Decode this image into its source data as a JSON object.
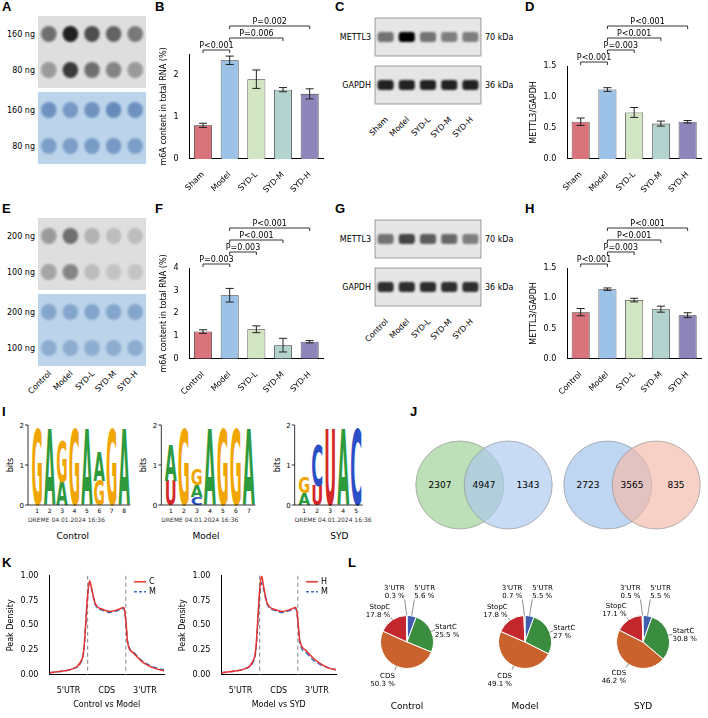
{
  "chart_data": [
    {
      "panel": "B",
      "type": "bar",
      "categories": [
        "Sham",
        "Model",
        "SYD-L",
        "SYD-M",
        "SYD-H"
      ],
      "values": [
        0.8,
        2.35,
        1.9,
        1.65,
        1.55
      ],
      "errors": [
        0.05,
        0.1,
        0.22,
        0.05,
        0.12
      ],
      "colors": [
        "#d9737c",
        "#9cc2e8",
        "#d2e6c4",
        "#b3d3cf",
        "#8e86bb"
      ],
      "ylabel": "m6A content in total RNA (%)",
      "ylim": [
        0,
        2.5
      ],
      "yticks": [
        0,
        1,
        2
      ],
      "grid": false,
      "comparisons": [
        {
          "from": "Model",
          "to": "SYD-H",
          "label": "P=0.002"
        },
        {
          "from": "Model",
          "to": "SYD-M",
          "label": "P=0.006"
        },
        {
          "from": "Sham",
          "to": "Model",
          "label": "P<0.001"
        }
      ]
    },
    {
      "panel": "D",
      "type": "bar",
      "categories": [
        "Sham",
        "Model",
        "SYD-L",
        "SYD-M",
        "SYD-H"
      ],
      "values": [
        0.6,
        1.12,
        0.75,
        0.57,
        0.6
      ],
      "errors": [
        0.06,
        0.03,
        0.08,
        0.04,
        0.02
      ],
      "colors": [
        "#d9737c",
        "#9cc2e8",
        "#d2e6c4",
        "#b3d3cf",
        "#8e86bb"
      ],
      "ylabel": "METTL3/GAPDH",
      "ylim": [
        0,
        1.5
      ],
      "yticks": [
        {
          "value": 0,
          "label": "0.0"
        },
        {
          "value": 0.5,
          "label": "0.5"
        },
        {
          "value": 1,
          "label": "1.0"
        },
        {
          "value": 1.5,
          "label": "1.5"
        }
      ],
      "grid": false,
      "comparisons": [
        {
          "from": "Model",
          "to": "SYD-H",
          "label": "P<0.001"
        },
        {
          "from": "Model",
          "to": "SYD-M",
          "label": "P<0.001"
        },
        {
          "from": "Model",
          "to": "SYD-L",
          "label": "P=0.003"
        },
        {
          "from": "Sham",
          "to": "Model",
          "label": "P<0.001"
        }
      ]
    },
    {
      "panel": "F",
      "type": "bar",
      "categories": [
        "Control",
        "Model",
        "SYD-L",
        "SYD-M",
        "SYD-H"
      ],
      "values": [
        1.2,
        2.8,
        1.3,
        0.6,
        0.75
      ],
      "errors": [
        0.08,
        0.3,
        0.15,
        0.3,
        0.05
      ],
      "colors": [
        "#d9737c",
        "#9cc2e8",
        "#d2e6c4",
        "#b3d3cf",
        "#8e86bb"
      ],
      "ylabel": "m6A content in total RNA (%)",
      "ylim": [
        0,
        4
      ],
      "yticks": [
        0,
        1,
        2,
        3,
        4
      ],
      "grid": false,
      "comparisons": [
        {
          "from": "Model",
          "to": "SYD-H",
          "label": "P<0.001"
        },
        {
          "from": "Model",
          "to": "SYD-M",
          "label": "P<0.001"
        },
        {
          "from": "Model",
          "to": "SYD-L",
          "label": "P=0.003"
        },
        {
          "from": "Control",
          "to": "Model",
          "label": "P=0.003"
        }
      ]
    },
    {
      "panel": "H",
      "type": "bar",
      "categories": [
        "Control",
        "Model",
        "SYD-L",
        "SYD-M",
        "SYD-H"
      ],
      "values": [
        0.77,
        1.15,
        0.97,
        0.82,
        0.72
      ],
      "errors": [
        0.06,
        0.02,
        0.03,
        0.05,
        0.04
      ],
      "colors": [
        "#d9737c",
        "#9cc2e8",
        "#d2e6c4",
        "#b3d3cf",
        "#8e86bb"
      ],
      "ylabel": "METTL3/GAPDH",
      "ylim": [
        0,
        1.5
      ],
      "yticks": [
        {
          "value": 0,
          "label": "0.0"
        },
        {
          "value": 0.5,
          "label": "0.5"
        },
        {
          "value": 1,
          "label": "1.0"
        },
        {
          "value": 1.5,
          "label": "1.5"
        }
      ],
      "grid": false,
      "comparisons": [
        {
          "from": "Model",
          "to": "SYD-H",
          "label": "P<0.001"
        },
        {
          "from": "Model",
          "to": "SYD-M",
          "label": "P<0.001"
        },
        {
          "from": "Model",
          "to": "SYD-L",
          "label": "P=0.003"
        },
        {
          "from": "Control",
          "to": "Model",
          "label": "P<0.001"
        }
      ]
    },
    {
      "panel": "K",
      "type": "line",
      "xlabel": "Control vs Model",
      "ylabel": "Peak Density",
      "x": [
        0,
        0.2,
        0.4,
        0.6,
        0.8,
        0.9,
        1.0,
        1.05,
        1.1,
        1.2,
        1.4,
        1.6,
        1.8,
        1.95,
        2.0,
        2.05,
        2.2,
        2.4,
        2.6,
        2.8,
        3.0
      ],
      "series": [
        {
          "name": "C",
          "color": "#e8322d",
          "line_style": "solid",
          "values": [
            0.02,
            0.03,
            0.04,
            0.06,
            0.12,
            0.25,
            0.8,
            0.95,
            0.88,
            0.72,
            0.66,
            0.64,
            0.66,
            0.68,
            0.55,
            0.32,
            0.22,
            0.14,
            0.09,
            0.06,
            0.04
          ]
        },
        {
          "name": "M",
          "color": "#3b6fc4",
          "line_style": "dashed",
          "values": [
            0.02,
            0.03,
            0.04,
            0.06,
            0.11,
            0.24,
            0.78,
            0.93,
            0.87,
            0.71,
            0.65,
            0.63,
            0.65,
            0.67,
            0.55,
            0.33,
            0.23,
            0.15,
            0.1,
            0.07,
            0.05
          ]
        }
      ],
      "xlim": [
        0,
        3
      ],
      "xticks": [
        {
          "value": 0.5,
          "label": "5'UTR"
        },
        {
          "value": 1.5,
          "label": "CDS"
        },
        {
          "value": 2.5,
          "label": "3'UTR"
        }
      ],
      "ylim": [
        0,
        1
      ],
      "yticks": [
        {
          "value": 0,
          "label": "0.00"
        },
        {
          "value": 0.25,
          "label": "0.25"
        },
        {
          "value": 0.5,
          "label": "0.50"
        },
        {
          "value": 0.75,
          "label": "0.75"
        },
        {
          "value": 1,
          "label": "1.00"
        }
      ],
      "legend": "upper right",
      "grid": false
    },
    {
      "type": "line",
      "xlabel": "Model vs SYD",
      "ylabel": "Peak Density",
      "x": [
        0,
        0.2,
        0.4,
        0.6,
        0.8,
        0.9,
        1.0,
        1.05,
        1.1,
        1.2,
        1.4,
        1.6,
        1.8,
        1.95,
        2.0,
        2.05,
        2.2,
        2.4,
        2.6,
        2.8,
        3.0
      ],
      "series": [
        {
          "name": "H",
          "color": "#e8322d",
          "line_style": "solid",
          "values": [
            0.02,
            0.03,
            0.04,
            0.06,
            0.12,
            0.26,
            0.85,
            1.0,
            0.9,
            0.72,
            0.66,
            0.64,
            0.66,
            0.68,
            0.56,
            0.35,
            0.25,
            0.17,
            0.11,
            0.07,
            0.05
          ]
        },
        {
          "name": "M",
          "color": "#3b6fc4",
          "line_style": "dashed",
          "values": [
            0.02,
            0.03,
            0.04,
            0.06,
            0.11,
            0.24,
            0.78,
            0.93,
            0.87,
            0.71,
            0.65,
            0.63,
            0.65,
            0.67,
            0.55,
            0.33,
            0.23,
            0.15,
            0.1,
            0.07,
            0.05
          ]
        }
      ],
      "xlim": [
        0,
        3
      ],
      "xticks": [
        {
          "value": 0.5,
          "label": "5'UTR"
        },
        {
          "value": 1.5,
          "label": "CDS"
        },
        {
          "value": 2.5,
          "label": "3'UTR"
        }
      ],
      "ylim": [
        0,
        1
      ],
      "yticks": [
        {
          "value": 0,
          "label": "0.00"
        },
        {
          "value": 0.25,
          "label": "0.25"
        },
        {
          "value": 0.5,
          "label": "0.50"
        },
        {
          "value": 0.75,
          "label": "0.75"
        },
        {
          "value": 1,
          "label": "1.00"
        }
      ],
      "legend": "upper right",
      "grid": false
    },
    {
      "panel": "L",
      "type": "pie",
      "title": "Control",
      "categories": [
        "5'UTR",
        "StartC",
        "CDS",
        "StopC",
        "3'UTR"
      ],
      "values": [
        5.6,
        25.5,
        50.3,
        17.8,
        0.3
      ],
      "value_labels": [
        "5.6 %",
        "25.5 %",
        "50.3 %",
        "17.8 %",
        "0.3 %"
      ],
      "colors": [
        "#3f5fae",
        "#3a8c3f",
        "#c9622c",
        "#c4262e",
        "#e0a030"
      ],
      "data_labels": true
    },
    {
      "type": "pie",
      "title": "Model",
      "categories": [
        "5'UTR",
        "StartC",
        "CDS",
        "StopC",
        "3'UTR"
      ],
      "values": [
        5.5,
        27,
        49.1,
        17.8,
        0.7
      ],
      "value_labels": [
        "5.5 %",
        "27 %",
        "49.1 %",
        "17.8 %",
        "0.7 %"
      ],
      "colors": [
        "#3f5fae",
        "#3a8c3f",
        "#c9622c",
        "#c4262e",
        "#e0a030"
      ],
      "data_labels": true
    },
    {
      "type": "pie",
      "title": "SYD",
      "categories": [
        "5'UTR",
        "StartC",
        "CDS",
        "StopC",
        "3'UTR"
      ],
      "values": [
        5.5,
        30.8,
        46.2,
        17.1,
        0.5
      ],
      "value_labels": [
        "5.5 %",
        "30.8 %",
        "46.2 %",
        "17.1 %",
        "0.5 %"
      ],
      "colors": [
        "#3f5fae",
        "#3a8c3f",
        "#c9622c",
        "#c4262e",
        "#e0a030"
      ],
      "data_labels": true
    }
  ],
  "dot_blots": [
    {
      "panel": "A",
      "row_labels": [
        "160 ng",
        "80 ng"
      ],
      "m6a_intensity": [
        [
          0.55,
          0.95,
          0.7,
          0.6,
          0.5
        ],
        [
          0.35,
          0.8,
          0.55,
          0.45,
          0.35
        ]
      ],
      "stain_intensity": [
        [
          0.5,
          0.45,
          0.5,
          0.55,
          0.5
        ],
        [
          0.4,
          0.4,
          0.42,
          0.45,
          0.4
        ]
      ]
    },
    {
      "panel": "E",
      "row_labels": [
        "200 ng",
        "100 ng"
      ],
      "lane_labels": [
        "Control",
        "Model",
        "SYD-L",
        "SYD-M",
        "SYD-H"
      ],
      "m6a_intensity": [
        [
          0.35,
          0.55,
          0.2,
          0.15,
          0.15
        ],
        [
          0.3,
          0.45,
          0.15,
          0.12,
          0.12
        ]
      ],
      "stain_intensity": [
        [
          0.35,
          0.35,
          0.35,
          0.35,
          0.35
        ],
        [
          0.3,
          0.3,
          0.3,
          0.3,
          0.3
        ]
      ]
    }
  ],
  "western_blots": [
    {
      "panel": "C",
      "lane_labels": [
        "Sham",
        "Model",
        "SYD-L",
        "SYD-M",
        "SYD-H"
      ],
      "bands": [
        {
          "name": "METTL3",
          "size": "70 kDa",
          "intensity": [
            0.5,
            1.0,
            0.5,
            0.45,
            0.45
          ]
        },
        {
          "name": "GAPDH",
          "size": "36 kDa",
          "intensity": [
            0.85,
            0.85,
            0.85,
            0.85,
            0.85
          ]
        }
      ]
    },
    {
      "panel": "G",
      "lane_labels": [
        "Control",
        "Model",
        "SYD-L",
        "SYD-M",
        "SYD-H"
      ],
      "bands": [
        {
          "name": "METTL3",
          "size": "70 kDa",
          "intensity": [
            0.5,
            0.7,
            0.6,
            0.55,
            0.45
          ]
        },
        {
          "name": "GAPDH",
          "size": "36 kDa",
          "intensity": [
            0.8,
            0.8,
            0.8,
            0.8,
            0.8
          ]
        }
      ]
    }
  ],
  "motifs": {
    "panel": "I",
    "ylabel": "bits",
    "ylim": [
      0,
      2
    ],
    "yticks": [
      0,
      1,
      2
    ],
    "stamp": "DREME 04.01.2024 16:36",
    "letter_colors": {
      "A": "#2e9a3e",
      "C": "#2b4fc7",
      "G": "#f0a500",
      "U": "#d62728"
    },
    "logos": [
      {
        "title": "Control",
        "position_labels": [
          1,
          2,
          3,
          4,
          5,
          6,
          7,
          8
        ],
        "positions": [
          [
            {
              "letter": "G",
              "height": 1.9
            }
          ],
          [
            {
              "letter": "A",
              "height": 1.9
            }
          ],
          [
            {
              "letter": "A",
              "height": 0.6
            },
            {
              "letter": "G",
              "height": 1.0
            }
          ],
          [
            {
              "letter": "G",
              "height": 1.9
            }
          ],
          [
            {
              "letter": "A",
              "height": 1.9
            }
          ],
          [
            {
              "letter": "G",
              "height": 0.6
            },
            {
              "letter": "A",
              "height": 0.7
            }
          ],
          [
            {
              "letter": "G",
              "height": 1.9
            }
          ],
          [
            {
              "letter": "A",
              "height": 1.9
            }
          ]
        ]
      },
      {
        "title": "Model",
        "position_labels": [
          1,
          2,
          3,
          4,
          5,
          6,
          7
        ],
        "positions": [
          [
            {
              "letter": "U",
              "height": 0.6
            },
            {
              "letter": "A",
              "height": 0.9
            }
          ],
          [
            {
              "letter": "G",
              "height": 1.9
            }
          ],
          [
            {
              "letter": "C",
              "height": 0.2
            },
            {
              "letter": "A",
              "height": 0.3
            },
            {
              "letter": "G",
              "height": 0.4
            }
          ],
          [
            {
              "letter": "A",
              "height": 1.9
            }
          ],
          [
            {
              "letter": "G",
              "height": 1.9
            }
          ],
          [
            {
              "letter": "G",
              "height": 1.9
            }
          ],
          [
            {
              "letter": "A",
              "height": 1.9
            }
          ]
        ]
      },
      {
        "title": "SYD",
        "position_labels": [
          1,
          2,
          3,
          4,
          5
        ],
        "positions": [
          [
            {
              "letter": "A",
              "height": 0.3
            },
            {
              "letter": "G",
              "height": 0.4
            }
          ],
          [
            {
              "letter": "U",
              "height": 0.5
            },
            {
              "letter": "C",
              "height": 1.0
            }
          ],
          [
            {
              "letter": "U",
              "height": 1.9
            }
          ],
          [
            {
              "letter": "A",
              "height": 1.9
            }
          ],
          [
            {
              "letter": "C",
              "height": 1.9
            }
          ]
        ]
      }
    ]
  },
  "venn": {
    "panel": "J",
    "diagrams": [
      {
        "colors": [
          "#a8d5a2",
          "#aac8ee"
        ],
        "counts": [
          2307,
          4947,
          1343
        ]
      },
      {
        "colors": [
          "#aac8ee",
          "#f4b9a8"
        ],
        "counts": [
          2723,
          3565,
          835
        ]
      }
    ]
  }
}
